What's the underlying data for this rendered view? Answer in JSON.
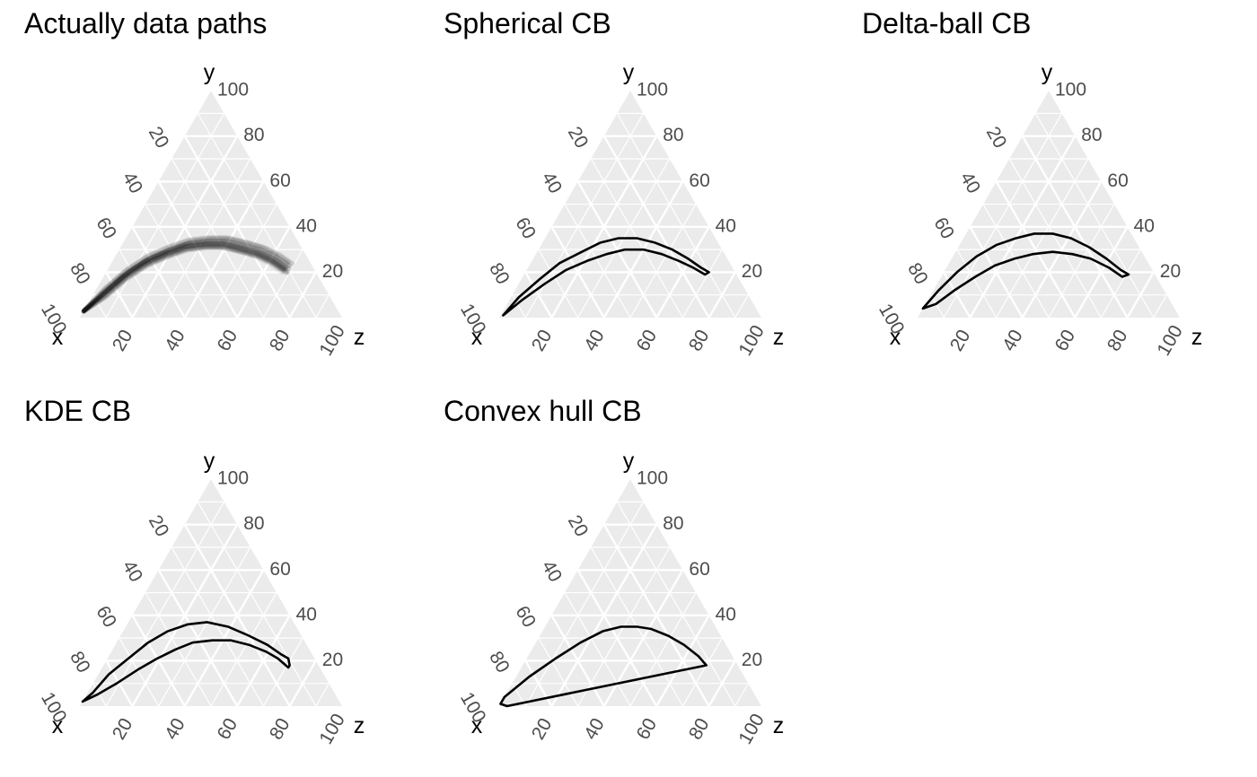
{
  "chart_data": [
    {
      "type": "ternary",
      "title": "Actually data paths",
      "axes": {
        "left": "x",
        "top": "y",
        "right": "z"
      },
      "ticks": [
        20,
        40,
        60,
        80,
        100
      ],
      "range": [
        0,
        100
      ],
      "grid": true,
      "layer": "paths",
      "path_count": 40,
      "path_center": [
        [
          97,
          3,
          0
        ],
        [
          85,
          11,
          4
        ],
        [
          73,
          19,
          8
        ],
        [
          62,
          25,
          13
        ],
        [
          52,
          29,
          19
        ],
        [
          43,
          32,
          25
        ],
        [
          35,
          33,
          32
        ],
        [
          28,
          33,
          39
        ],
        [
          22,
          31,
          47
        ],
        [
          17,
          29,
          54
        ],
        [
          13,
          26,
          61
        ],
        [
          10,
          22,
          68
        ]
      ]
    },
    {
      "type": "ternary",
      "title": "Spherical CB",
      "axes": {
        "left": "x",
        "top": "y",
        "right": "z"
      },
      "ticks": [
        20,
        40,
        60,
        80,
        100
      ],
      "range": [
        0,
        100
      ],
      "grid": true,
      "layer": "band",
      "upper": [
        [
          98,
          1,
          1
        ],
        [
          88,
          9,
          3
        ],
        [
          76,
          17,
          7
        ],
        [
          65,
          24,
          11
        ],
        [
          54,
          29,
          17
        ],
        [
          45,
          33,
          22
        ],
        [
          37,
          35,
          28
        ],
        [
          30,
          35,
          35
        ],
        [
          24,
          33,
          43
        ],
        [
          19,
          30,
          51
        ],
        [
          15,
          26,
          59
        ],
        [
          12,
          22,
          66
        ],
        [
          10,
          20,
          70
        ]
      ],
      "lower": [
        [
          98,
          1,
          1
        ],
        [
          87,
          8,
          5
        ],
        [
          75,
          15,
          10
        ],
        [
          64,
          21,
          15
        ],
        [
          54,
          25,
          21
        ],
        [
          45,
          28,
          27
        ],
        [
          37,
          30,
          33
        ],
        [
          30,
          30,
          40
        ],
        [
          24,
          28,
          48
        ],
        [
          19,
          25,
          56
        ],
        [
          15,
          22,
          63
        ],
        [
          12,
          19,
          69
        ],
        [
          10,
          20,
          70
        ]
      ]
    },
    {
      "type": "ternary",
      "title": "Delta-ball CB",
      "axes": {
        "left": "x",
        "top": "y",
        "right": "z"
      },
      "ticks": [
        20,
        40,
        60,
        80,
        100
      ],
      "range": [
        0,
        100
      ],
      "grid": true,
      "layer": "band",
      "upper": [
        [
          96,
          4,
          0
        ],
        [
          86,
          12,
          2
        ],
        [
          75,
          20,
          5
        ],
        [
          64,
          27,
          9
        ],
        [
          54,
          32,
          14
        ],
        [
          45,
          35,
          20
        ],
        [
          37,
          37,
          26
        ],
        [
          30,
          37,
          33
        ],
        [
          24,
          35,
          41
        ],
        [
          19,
          31,
          50
        ],
        [
          15,
          26,
          59
        ],
        [
          12,
          21,
          67
        ],
        [
          10,
          19,
          71
        ]
      ],
      "lower": [
        [
          96,
          4,
          0
        ],
        [
          90,
          6,
          4
        ],
        [
          80,
          12,
          8
        ],
        [
          69,
          18,
          13
        ],
        [
          59,
          23,
          18
        ],
        [
          50,
          26,
          24
        ],
        [
          42,
          28,
          30
        ],
        [
          34,
          29,
          37
        ],
        [
          27,
          28,
          45
        ],
        [
          21,
          26,
          53
        ],
        [
          16,
          22,
          62
        ],
        [
          13,
          18,
          69
        ],
        [
          10,
          19,
          71
        ]
      ]
    },
    {
      "type": "ternary",
      "title": "KDE CB",
      "axes": {
        "left": "x",
        "top": "y",
        "right": "z"
      },
      "ticks": [
        20,
        40,
        60,
        80,
        100
      ],
      "range": [
        0,
        100
      ],
      "grid": true,
      "layer": "band",
      "upper": [
        [
          98,
          2,
          0
        ],
        [
          92,
          6,
          2
        ],
        [
          82,
          14,
          4
        ],
        [
          71,
          21,
          8
        ],
        [
          60,
          28,
          12
        ],
        [
          50,
          33,
          17
        ],
        [
          41,
          36,
          23
        ],
        [
          33,
          37,
          30
        ],
        [
          26,
          35,
          39
        ],
        [
          20,
          31,
          49
        ],
        [
          15,
          27,
          58
        ],
        [
          12,
          23,
          65
        ],
        [
          10,
          21,
          69
        ],
        [
          11,
          18,
          71
        ],
        [
          12,
          17,
          71
        ]
      ],
      "lower": [
        [
          98,
          2,
          0
        ],
        [
          91,
          5,
          4
        ],
        [
          81,
          10,
          9
        ],
        [
          70,
          16,
          14
        ],
        [
          60,
          21,
          19
        ],
        [
          51,
          25,
          24
        ],
        [
          43,
          28,
          29
        ],
        [
          35,
          29,
          36
        ],
        [
          28,
          29,
          43
        ],
        [
          22,
          27,
          51
        ],
        [
          17,
          24,
          59
        ],
        [
          14,
          21,
          65
        ],
        [
          12,
          17,
          71
        ]
      ]
    },
    {
      "type": "ternary",
      "title": "Convex hull CB",
      "axes": {
        "left": "x",
        "top": "y",
        "right": "z"
      },
      "ticks": [
        20,
        40,
        60,
        80,
        100
      ],
      "range": [
        0,
        100
      ],
      "grid": true,
      "layer": "hull",
      "hull": [
        [
          99,
          1,
          0
        ],
        [
          96,
          4,
          0
        ],
        [
          82,
          13,
          5
        ],
        [
          68,
          21,
          11
        ],
        [
          55,
          28,
          17
        ],
        [
          44,
          33,
          23
        ],
        [
          36,
          35,
          29
        ],
        [
          30,
          35,
          35
        ],
        [
          25,
          34,
          41
        ],
        [
          20,
          31,
          49
        ],
        [
          16,
          27,
          57
        ],
        [
          13,
          22,
          65
        ],
        [
          12,
          18,
          70
        ],
        [
          97,
          0,
          3
        ]
      ]
    }
  ]
}
